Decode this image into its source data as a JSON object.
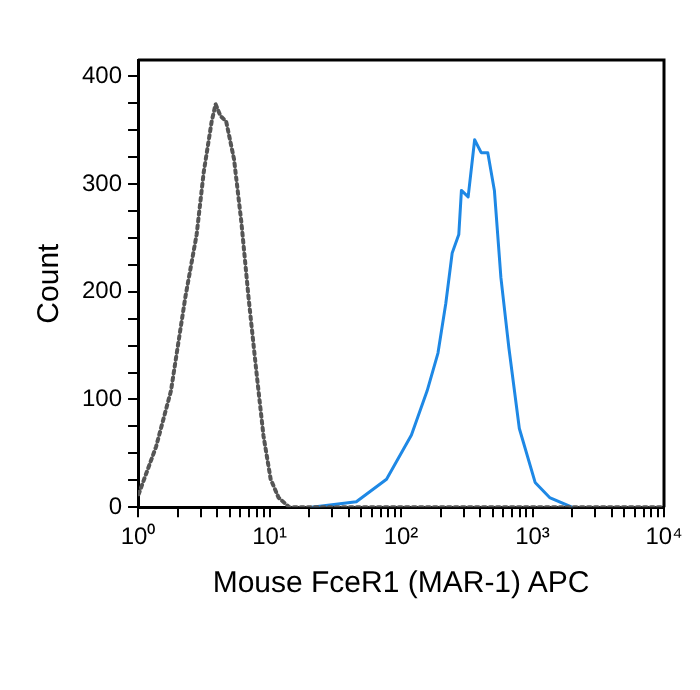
{
  "chart_data": {
    "type": "line",
    "xlabel": "Mouse FceR1 (MAR-1) APC",
    "ylabel": "Count",
    "log": "x",
    "grid": false,
    "legend": false,
    "marker": "none",
    "xlim": [
      1,
      10000
    ],
    "ylim": [
      0,
      415
    ],
    "xticks": [
      {
        "value": 1,
        "label": "10⁰"
      },
      {
        "value": 2,
        "label": null
      },
      {
        "value": 3,
        "label": null
      },
      {
        "value": 4,
        "label": null
      },
      {
        "value": 5,
        "label": null
      },
      {
        "value": 6,
        "label": null
      },
      {
        "value": 7,
        "label": null
      },
      {
        "value": 8,
        "label": null
      },
      {
        "value": 9,
        "label": null
      },
      {
        "value": 10,
        "label": "10¹"
      },
      {
        "value": 20,
        "label": null
      },
      {
        "value": 30,
        "label": null
      },
      {
        "value": 40,
        "label": null
      },
      {
        "value": 50,
        "label": null
      },
      {
        "value": 60,
        "label": null
      },
      {
        "value": 70,
        "label": null
      },
      {
        "value": 80,
        "label": null
      },
      {
        "value": 90,
        "label": null
      },
      {
        "value": 100,
        "label": "10²"
      },
      {
        "value": 200,
        "label": null
      },
      {
        "value": 300,
        "label": null
      },
      {
        "value": 400,
        "label": null
      },
      {
        "value": 500,
        "label": null
      },
      {
        "value": 600,
        "label": null
      },
      {
        "value": 700,
        "label": null
      },
      {
        "value": 800,
        "label": null
      },
      {
        "value": 900,
        "label": null
      },
      {
        "value": 1000,
        "label": "10³"
      },
      {
        "value": 2000,
        "label": null
      },
      {
        "value": 3000,
        "label": null
      },
      {
        "value": 4000,
        "label": null
      },
      {
        "value": 5000,
        "label": null
      },
      {
        "value": 6000,
        "label": null
      },
      {
        "value": 7000,
        "label": null
      },
      {
        "value": 8000,
        "label": null
      },
      {
        "value": 9000,
        "label": null
      },
      {
        "value": 10000,
        "label": "10⁴"
      }
    ],
    "yticks": [
      0,
      {
        "value": 25,
        "label": null
      },
      {
        "value": 50,
        "label": null
      },
      {
        "value": 75,
        "label": null
      },
      100,
      {
        "value": 125,
        "label": null
      },
      {
        "value": 150,
        "label": null
      },
      {
        "value": 175,
        "label": null
      },
      200,
      {
        "value": 225,
        "label": null
      },
      {
        "value": 250,
        "label": null
      },
      {
        "value": 275,
        "label": null
      },
      300,
      {
        "value": 325,
        "label": null
      },
      {
        "value": 350,
        "label": null
      },
      {
        "value": 375,
        "label": null
      },
      400
    ],
    "series": [
      {
        "color": "#555555",
        "line_style": "dotted",
        "x": [
          1.01,
          1.37,
          1.78,
          2.29,
          2.79,
          3.16,
          3.63,
          3.89,
          4.24,
          4.68,
          5.37,
          6.1,
          6.92,
          7.94,
          9.0,
          10.2,
          11.7,
          14.1,
          10000
        ],
        "values": [
          12,
          56,
          108,
          195,
          253,
          311,
          358,
          374,
          363,
          358,
          323,
          265,
          195,
          126,
          66,
          26,
          9,
          0,
          0
        ]
      },
      {
        "color": "#1e88e5",
        "line_style": "solid",
        "x": [
          20.9,
          45.7,
          77.6,
          120,
          158,
          191,
          219,
          245,
          275,
          288,
          324,
          363,
          407,
          457,
          513,
          575,
          661,
          794,
          1047,
          1349,
          1995
        ],
        "values": [
          0,
          5,
          26,
          67,
          108,
          143,
          189,
          236,
          253,
          294,
          288,
          341,
          329,
          329,
          294,
          213,
          148,
          73,
          23,
          9,
          0
        ]
      }
    ]
  }
}
